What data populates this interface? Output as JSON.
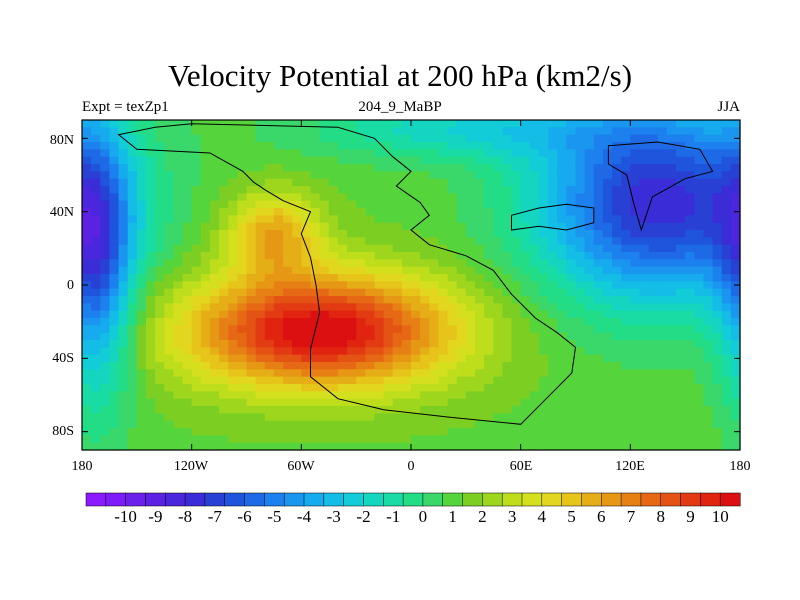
{
  "chart_data": {
    "type": "heatmap",
    "title": "Velocity Potential at 200 hPa (km2/s)",
    "left_label": "Expt = texZp1",
    "center_label": "204_9_MaBP",
    "right_label": "JJA",
    "x_range": [
      -180,
      180
    ],
    "y_range": [
      -90,
      90
    ],
    "x_ticks": [
      {
        "value": -180,
        "label": "180"
      },
      {
        "value": -120,
        "label": "120W"
      },
      {
        "value": -60,
        "label": "60W"
      },
      {
        "value": 0,
        "label": "0"
      },
      {
        "value": 60,
        "label": "60E"
      },
      {
        "value": 120,
        "label": "120E"
      },
      {
        "value": 180,
        "label": "180"
      }
    ],
    "y_ticks": [
      {
        "value": 80,
        "label": "80N"
      },
      {
        "value": 40,
        "label": "40N"
      },
      {
        "value": 0,
        "label": "0"
      },
      {
        "value": -40,
        "label": "40S"
      },
      {
        "value": -80,
        "label": "80S"
      }
    ],
    "colorbar": {
      "min": -11,
      "max": 11,
      "labels": [
        "-10",
        "-9",
        "-8",
        "-7",
        "-6",
        "-5",
        "-4",
        "-3",
        "-2",
        "-1",
        "0",
        "1",
        "2",
        "3",
        "4",
        "5",
        "6",
        "7",
        "8",
        "9",
        "10"
      ],
      "colors": [
        "#8c1aff",
        "#7d1cf6",
        "#6d1fec",
        "#5c22e3",
        "#4a26dc",
        "#3a2cd6",
        "#2840d4",
        "#1f55dc",
        "#1e6ae6",
        "#1c80ee",
        "#1a96f0",
        "#16aaee",
        "#13bde6",
        "#12ccd8",
        "#14d6c0",
        "#18dca4",
        "#22dc86",
        "#3ad86a",
        "#56d43c",
        "#7ccf22",
        "#9ed61e",
        "#bede1c",
        "#d4e01e",
        "#e2d61e",
        "#e6c41a",
        "#e6ae16",
        "#e69814",
        "#e68014",
        "#e66814",
        "#e45214",
        "#e23a12",
        "#e02410",
        "#dc1010"
      ]
    },
    "field_centers": [
      {
        "lon": -50,
        "lat": -25,
        "amp": 9.6,
        "sx": 52,
        "sy": 22
      },
      {
        "lon": -75,
        "lat": 28,
        "amp": 4.6,
        "sx": 18,
        "sy": 16
      },
      {
        "lon": 135,
        "lat": 45,
        "amp": -9.0,
        "sx": 46,
        "sy": 38
      },
      {
        "lon": -172,
        "lat": 10,
        "amp": -6.0,
        "sx": 14,
        "sy": 52
      },
      {
        "lon": 30,
        "lat": 85,
        "amp": -3.0,
        "sx": 60,
        "sy": 12
      }
    ]
  }
}
